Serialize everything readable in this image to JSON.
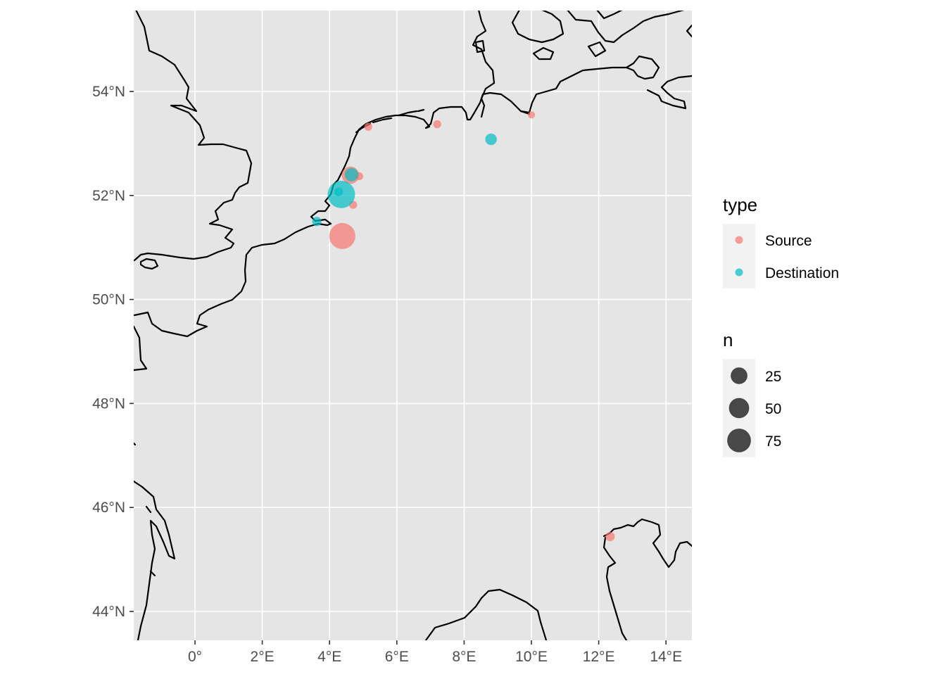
{
  "chart_data": {
    "type": "scatter",
    "subtype": "map",
    "title": "",
    "xlabel": "",
    "ylabel": "",
    "xlim": [
      -1.8,
      14.7
    ],
    "ylim": [
      43.5,
      55.6
    ],
    "x_ticks": [
      {
        "value": 0,
        "label": "0°"
      },
      {
        "value": 2,
        "label": "2°E"
      },
      {
        "value": 4,
        "label": "4°E"
      },
      {
        "value": 6,
        "label": "6°E"
      },
      {
        "value": 8,
        "label": "8°E"
      },
      {
        "value": 10,
        "label": "10°E"
      },
      {
        "value": 12,
        "label": "12°E"
      },
      {
        "value": 14,
        "label": "14°E"
      }
    ],
    "y_ticks": [
      {
        "value": 44,
        "label": "44°N"
      },
      {
        "value": 46,
        "label": "46°N"
      },
      {
        "value": 48,
        "label": "48°N"
      },
      {
        "value": 50,
        "label": "50°N"
      },
      {
        "value": 52,
        "label": "52°N"
      },
      {
        "value": 54,
        "label": "54°N"
      }
    ],
    "grid": true,
    "panel_background": "#e5e5e5",
    "legend_position": "right",
    "color_legend": {
      "title": "type",
      "entries": [
        {
          "label": "Source",
          "color": "#f8766d"
        },
        {
          "label": "Destination",
          "color": "#00bfc4"
        }
      ]
    },
    "size_legend": {
      "title": "n",
      "entries": [
        {
          "label": "25",
          "value": 25
        },
        {
          "label": "50",
          "value": 50
        },
        {
          "label": "75",
          "value": 75
        }
      ]
    },
    "points": [
      {
        "type": "Source",
        "lon": 4.38,
        "lat": 51.22,
        "n": 80
      },
      {
        "type": "Source",
        "lon": 4.62,
        "lat": 52.39,
        "n": 30
      },
      {
        "type": "Source",
        "lon": 4.88,
        "lat": 52.37,
        "n": 3
      },
      {
        "type": "Source",
        "lon": 4.7,
        "lat": 51.82,
        "n": 3
      },
      {
        "type": "Source",
        "lon": 5.15,
        "lat": 53.32,
        "n": 3
      },
      {
        "type": "Source",
        "lon": 7.2,
        "lat": 53.37,
        "n": 3
      },
      {
        "type": "Source",
        "lon": 10.0,
        "lat": 53.55,
        "n": 2
      },
      {
        "type": "Source",
        "lon": 12.34,
        "lat": 45.44,
        "n": 5
      },
      {
        "type": "Destination",
        "lon": 4.35,
        "lat": 52.02,
        "n": 90
      },
      {
        "type": "Destination",
        "lon": 4.65,
        "lat": 52.4,
        "n": 15
      },
      {
        "type": "Destination",
        "lon": 4.27,
        "lat": 52.07,
        "n": 4
      },
      {
        "type": "Destination",
        "lon": 3.62,
        "lat": 51.5,
        "n": 5
      },
      {
        "type": "Destination",
        "lon": 8.8,
        "lat": 53.08,
        "n": 10
      }
    ]
  }
}
